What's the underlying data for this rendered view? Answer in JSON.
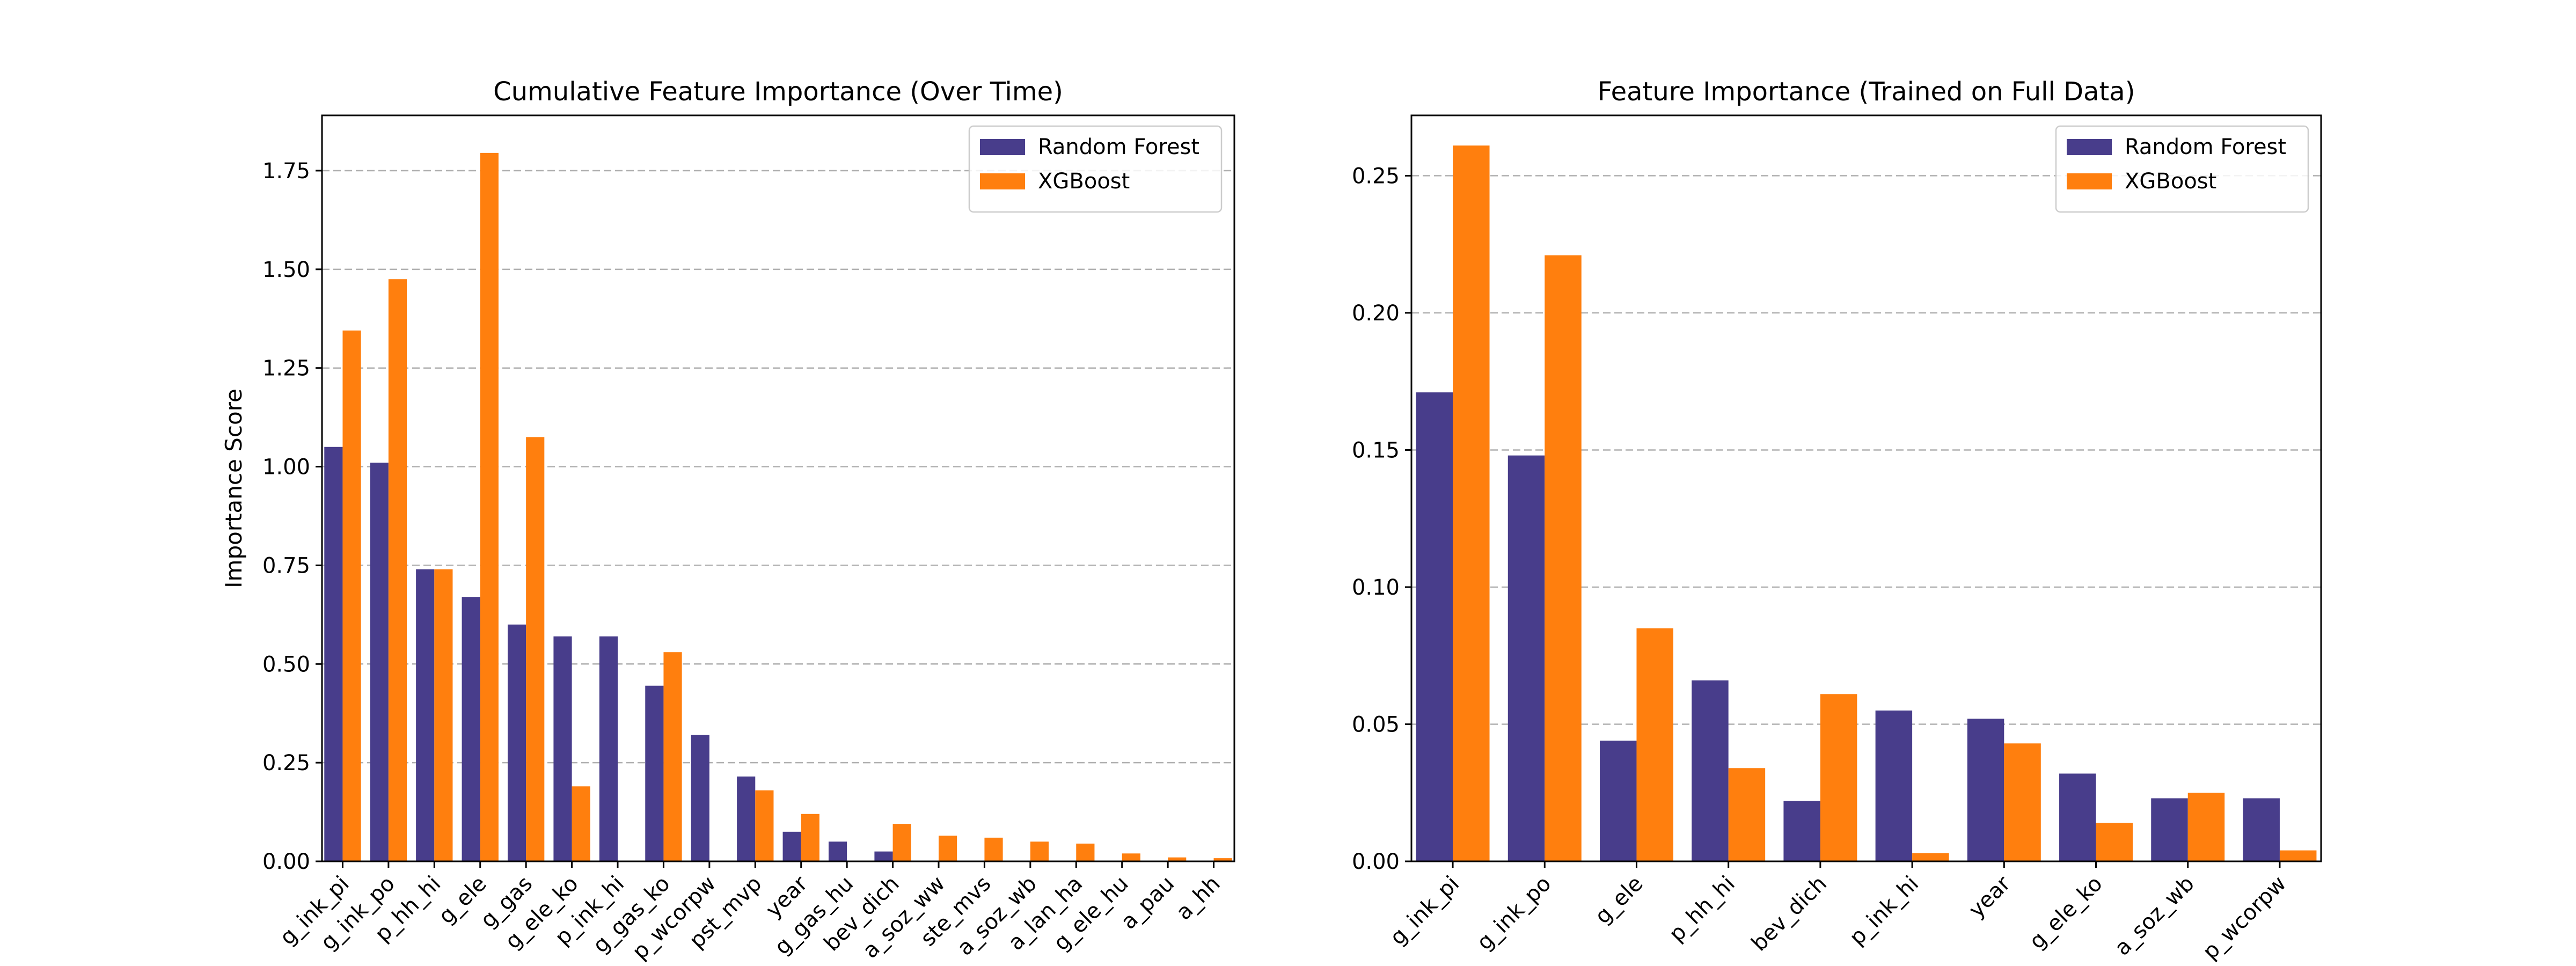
{
  "chart_data": [
    {
      "type": "bar",
      "title": "Cumulative Feature Importance (Over Time)",
      "xlabel": "",
      "ylabel": "Importance Score",
      "ylim": [
        0,
        1.89
      ],
      "yticks": [
        0.0,
        0.25,
        0.5,
        0.75,
        1.0,
        1.25,
        1.5,
        1.75
      ],
      "grid": "y-dashed",
      "legend_position": "top-right",
      "categories": [
        "g_ink_pi",
        "g_ink_po",
        "p_hh_hi",
        "g_ele",
        "g_gas",
        "g_ele_ko",
        "p_ink_hi",
        "g_gas_ko",
        "p_wcorpw",
        "pst_mvp",
        "year",
        "g_gas_hu",
        "bev_dich",
        "a_soz_ww",
        "ste_mvs",
        "a_soz_wb",
        "a_lan_ha",
        "g_ele_hu",
        "a_pau",
        "a_hh"
      ],
      "series": [
        {
          "name": "Random Forest",
          "color": "#483D8B",
          "values": [
            1.05,
            1.01,
            0.74,
            0.67,
            0.6,
            0.57,
            0.57,
            0.445,
            0.32,
            0.215,
            0.075,
            0.05,
            0.025,
            0.0,
            0.0,
            0.0,
            0.0,
            0.0,
            0.0,
            0.0
          ]
        },
        {
          "name": "XGBoost",
          "color": "#FF7F0E",
          "values": [
            1.345,
            1.475,
            0.74,
            1.795,
            1.075,
            0.19,
            0.0,
            0.53,
            0.0,
            0.18,
            0.12,
            0.0,
            0.095,
            0.065,
            0.06,
            0.05,
            0.045,
            0.02,
            0.01,
            0.008
          ]
        }
      ]
    },
    {
      "type": "bar",
      "title": "Feature Importance (Trained on Full Data)",
      "xlabel": "",
      "ylabel": "",
      "ylim": [
        0,
        0.272
      ],
      "yticks": [
        0.0,
        0.05,
        0.1,
        0.15,
        0.2,
        0.25
      ],
      "grid": "y-dashed",
      "legend_position": "top-right",
      "categories": [
        "g_ink_pi",
        "g_ink_po",
        "g_ele",
        "p_hh_hi",
        "bev_dich",
        "p_ink_hi",
        "year",
        "g_ele_ko",
        "a_soz_wb",
        "p_wcorpw"
      ],
      "series": [
        {
          "name": "Random Forest",
          "color": "#483D8B",
          "values": [
            0.171,
            0.148,
            0.044,
            0.066,
            0.022,
            0.055,
            0.052,
            0.032,
            0.023,
            0.023
          ]
        },
        {
          "name": "XGBoost",
          "color": "#FF7F0E",
          "values": [
            0.261,
            0.221,
            0.085,
            0.034,
            0.061,
            0.003,
            0.043,
            0.014,
            0.025,
            0.004
          ]
        }
      ]
    }
  ]
}
